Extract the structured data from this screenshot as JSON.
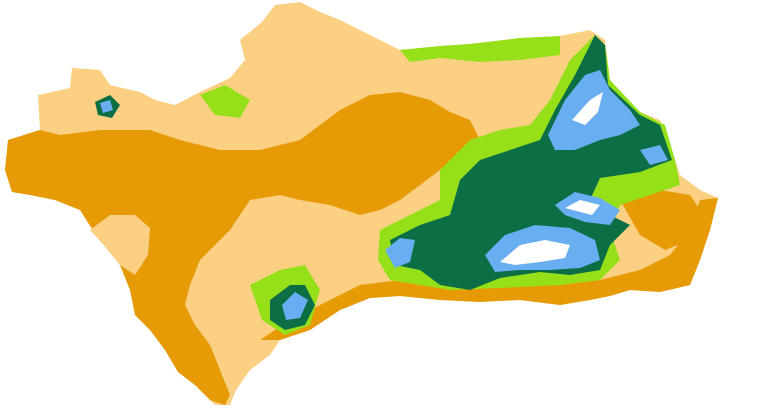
{
  "map": {
    "region": "Andalusia",
    "legend_colors": {
      "light_orange": "#fbd083",
      "dark_orange": "#e69a05",
      "light_green": "#96e01a",
      "dark_green": "#0b6e45",
      "blue": "#6aaef2",
      "white": "#ffffff"
    }
  }
}
